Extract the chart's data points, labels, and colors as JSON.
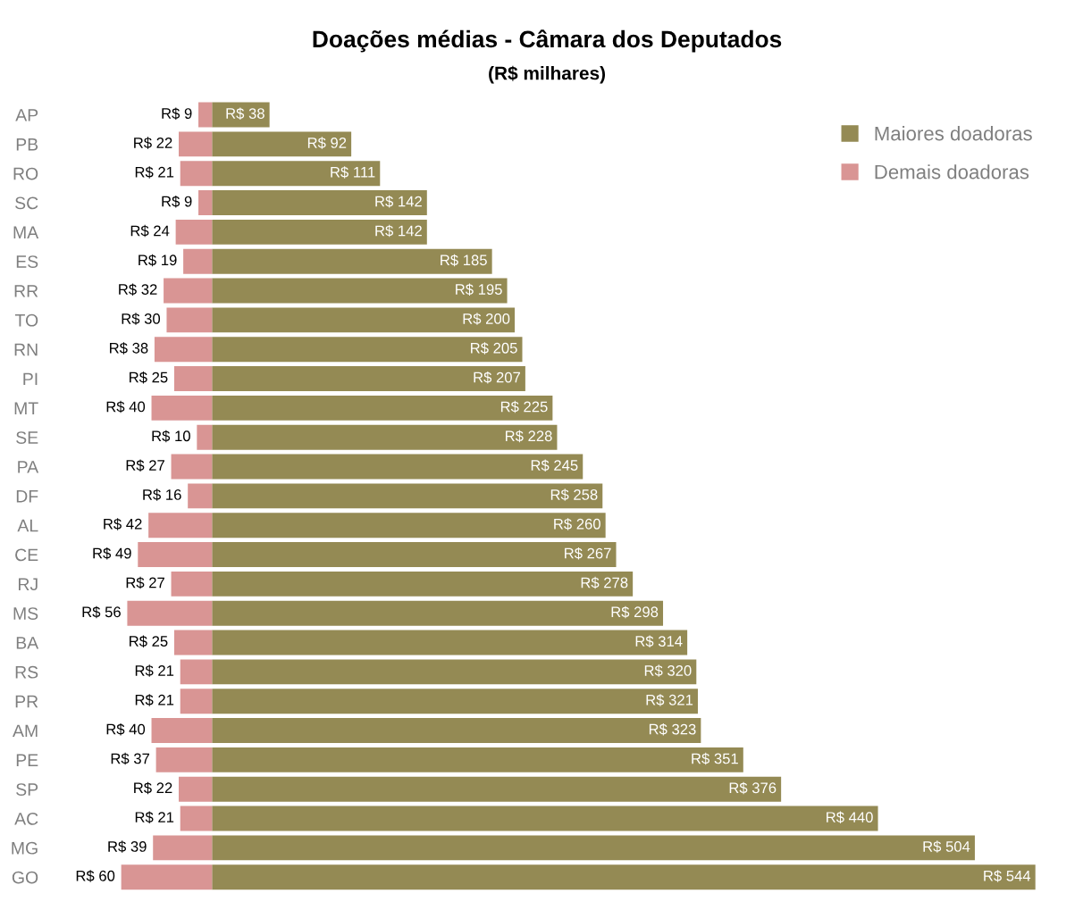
{
  "chart_data": {
    "type": "bar",
    "orientation": "horizontal",
    "stacked": true,
    "title": "Doações médias - Câmara dos Deputados",
    "subtitle": "(R$ milhares)",
    "categories": [
      "AP",
      "PB",
      "RO",
      "SC",
      "MA",
      "ES",
      "RR",
      "TO",
      "RN",
      "PI",
      "MT",
      "SE",
      "PA",
      "DF",
      "AL",
      "CE",
      "RJ",
      "MS",
      "BA",
      "RS",
      "PR",
      "AM",
      "PE",
      "SP",
      "AC",
      "MG",
      "GO"
    ],
    "series": [
      {
        "name": "Maiores doadoras",
        "color": "#948a54",
        "values": [
          38,
          92,
          111,
          142,
          142,
          185,
          195,
          200,
          205,
          207,
          225,
          228,
          245,
          258,
          260,
          267,
          278,
          298,
          314,
          320,
          321,
          323,
          351,
          376,
          440,
          504,
          544
        ],
        "value_labels": [
          "R$ 38",
          "R$ 92",
          "R$ 111",
          "R$ 142",
          "R$ 142",
          "R$ 185",
          "R$ 195",
          "R$ 200",
          "R$ 205",
          "R$ 207",
          "R$ 225",
          "R$ 228",
          "R$ 245",
          "R$ 258",
          "R$ 260",
          "R$ 267",
          "R$ 278",
          "R$ 298",
          "R$ 314",
          "R$ 320",
          "R$ 321",
          "R$ 323",
          "R$ 351",
          "R$ 376",
          "R$ 440",
          "R$ 504",
          "R$ 544"
        ]
      },
      {
        "name": "Demais doadoras",
        "color": "#d99594",
        "values": [
          -9,
          -22,
          -21,
          -9,
          -24,
          -19,
          -32,
          -30,
          -38,
          -25,
          -40,
          -10,
          -27,
          -16,
          -42,
          -49,
          -27,
          -56,
          -25,
          -21,
          -21,
          -40,
          -37,
          -22,
          -21,
          -39,
          -60
        ],
        "value_labels": [
          "R$ 9",
          "R$ 22",
          "R$ 21",
          "R$ 9",
          "R$ 24",
          "R$ 19",
          "R$ 32",
          "R$ 30",
          "R$ 38",
          "R$ 25",
          "R$ 40",
          "R$ 10",
          "R$ 27",
          "R$ 16",
          "R$ 42",
          "R$ 49",
          "R$ 27",
          "R$ 56",
          "R$ 25",
          "R$ 21",
          "R$ 21",
          "R$ 40",
          "R$ 37",
          "R$ 22",
          "R$ 21",
          "R$ 39",
          "R$ 60"
        ]
      }
    ],
    "legend": "top right",
    "grid": false,
    "tick_labels": "y"
  }
}
